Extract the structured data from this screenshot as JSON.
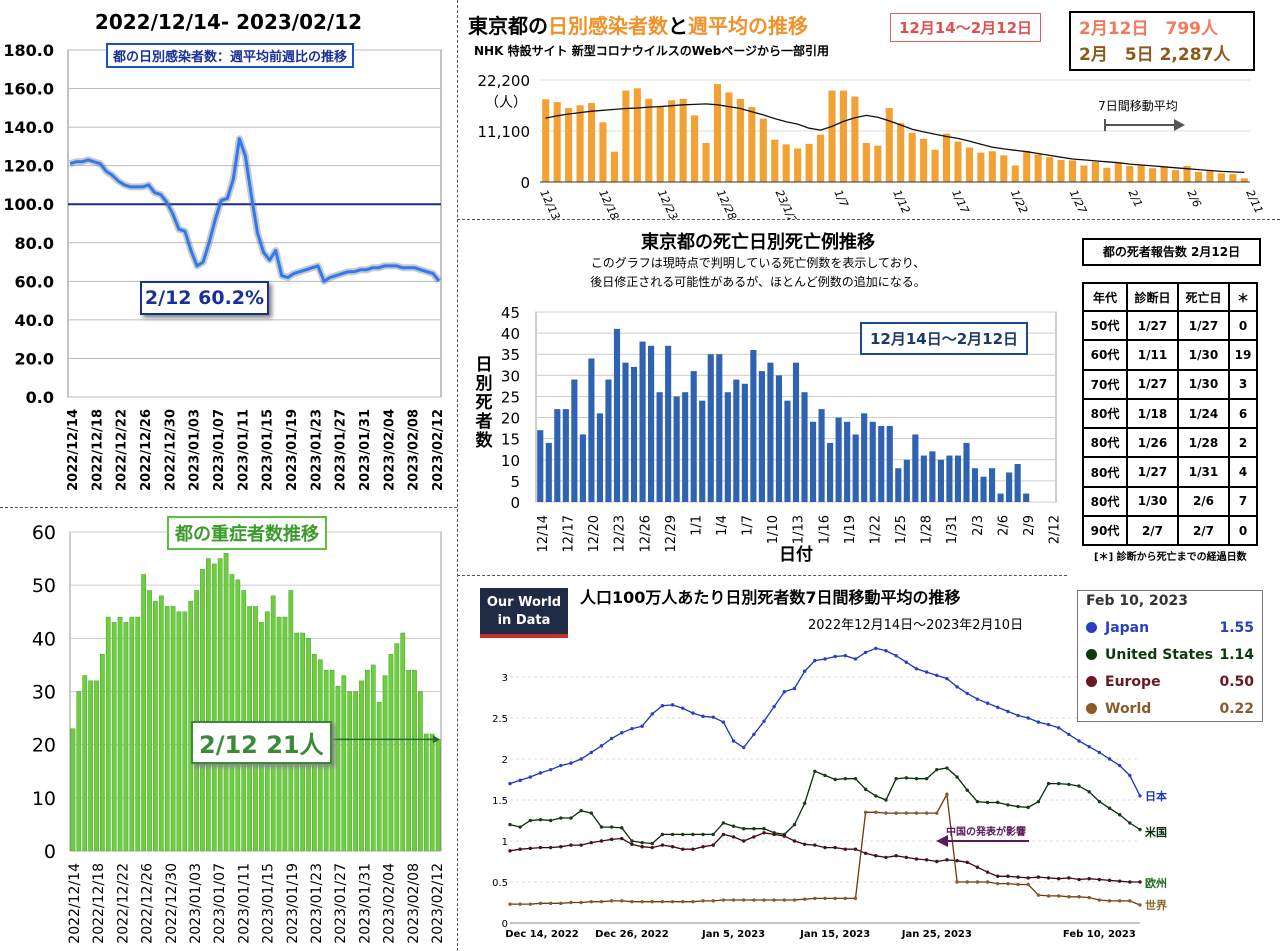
{
  "panel1": {
    "title": "2022/12/14- 2023/02/12",
    "subtitle": "都の日別感染者数：週平均前週比の推移",
    "callout": "2/12 60.2%",
    "chart_data": {
      "type": "line",
      "title": "都の日別感染者数：週平均前週比の推移",
      "ylim": [
        0,
        180
      ],
      "yticks": [
        "0.0",
        "20.0",
        "40.0",
        "60.0",
        "80.0",
        "100.0",
        "120.0",
        "140.0",
        "160.0",
        "180.0"
      ],
      "reference_line": 100,
      "xticks": [
        "2022/12/14",
        "2022/12/18",
        "2022/12/22",
        "2022/12/26",
        "2022/12/30",
        "2023/01/03",
        "2023/01/07",
        "2023/01/11",
        "2023/01/15",
        "2023/01/19",
        "2023/01/23",
        "2023/01/27",
        "2023/01/31",
        "2023/02/04",
        "2023/02/08",
        "2023/02/12"
      ],
      "values": [
        121,
        122,
        122,
        123,
        122,
        121,
        117,
        115,
        112,
        110,
        109,
        109,
        109,
        110,
        106,
        105,
        101,
        95,
        87,
        86,
        76,
        68,
        70,
        80,
        92,
        102,
        103,
        113,
        134,
        125,
        104,
        85,
        75,
        71,
        76,
        63,
        62,
        64,
        65,
        66,
        67,
        68,
        60,
        62,
        63,
        64,
        65,
        65,
        66,
        66,
        67,
        67,
        68,
        68,
        68,
        67,
        67,
        67,
        66,
        65,
        64,
        60.2
      ],
      "grid": true
    }
  },
  "panel2": {
    "title_part1": "東京都の",
    "title_part2": "日別感染者数",
    "title_part3": "と",
    "title_part4": "週平均",
    "title_part5": "の推移",
    "source": "NHK 特設サイト 新型コロナウイルスのWebページから一部引用",
    "range_label": "12月14〜2月12日",
    "box_line1_date": "2月12日",
    "box_line1_value": "799人",
    "box_line2_date": "2月　5日",
    "box_line2_value": "2,287人",
    "chart_data": {
      "type": "bar",
      "ylim": [
        0,
        22200
      ],
      "yticks": [
        "0",
        "11,100",
        "22,200"
      ],
      "yunit": "（人）",
      "legend_label": "7日間移動平均",
      "xticks": [
        "12/13",
        "12/18",
        "12/23",
        "12/28",
        "23/1/2",
        "1/7",
        "1/12",
        "1/17",
        "1/22",
        "1/27",
        "2/1",
        "2/6",
        "2/11"
      ],
      "series": [
        {
          "name": "日別感染者数",
          "values": [
            18000,
            17400,
            16100,
            16700,
            17200,
            13000,
            6600,
            19900,
            20400,
            18100,
            16600,
            17800,
            18100,
            14500,
            8500,
            21300,
            19500,
            18100,
            16300,
            13800,
            9200,
            8200,
            7300,
            8300,
            10300,
            19900,
            19900,
            18600,
            8500,
            7900,
            16100,
            12800,
            10700,
            9400,
            7000,
            10500,
            8800,
            7500,
            6400,
            6700,
            5800,
            3600,
            6800,
            6000,
            5400,
            4800,
            4700,
            3600,
            4400,
            3100,
            4100,
            3500,
            3800,
            3000,
            3300,
            2600,
            3500,
            2200,
            2400,
            1900,
            1700,
            799
          ]
        },
        {
          "name": "7日間移動平均",
          "values": [
            13900,
            14400,
            14800,
            15100,
            15400,
            15600,
            15800,
            16000,
            16100,
            16300,
            16400,
            16600,
            16800,
            16900,
            17000,
            16800,
            16400,
            16000,
            15300,
            14600,
            13800,
            13100,
            12600,
            11700,
            11300,
            12100,
            13200,
            14000,
            14500,
            14100,
            13300,
            12400,
            11500,
            10900,
            10400,
            9900,
            9500,
            8900,
            8200,
            7600,
            7200,
            6900,
            6600,
            6200,
            5800,
            5400,
            5000,
            4800,
            4600,
            4400,
            4200,
            3900,
            3700,
            3500,
            3300,
            3100,
            2900,
            2700,
            2500,
            2300,
            2200,
            2100
          ]
        }
      ]
    }
  },
  "panel3": {
    "title": "東京都の死亡日別死亡例推移",
    "note1": "このグラフは現時点で判明している死亡例数を表示しており、",
    "note2": "後日修正される可能性があるが、ほとんど例数の追加になる。",
    "range_label": "12月14日〜2月12日",
    "ylabel": "日別死者数",
    "xlabel": "日付",
    "chart_data": {
      "type": "bar",
      "ylim": [
        0,
        45
      ],
      "yticks": [
        "0",
        "5",
        "10",
        "15",
        "20",
        "25",
        "30",
        "35",
        "40",
        "45"
      ],
      "xticks": [
        "12/14",
        "12/17",
        "12/20",
        "12/23",
        "12/26",
        "12/29",
        "1/1",
        "1/4",
        "1/7",
        "1/10",
        "1/13",
        "1/16",
        "1/19",
        "1/22",
        "1/25",
        "1/28",
        "1/31",
        "2/3",
        "2/6",
        "2/9",
        "2/12"
      ],
      "values": [
        17,
        14,
        22,
        22,
        29,
        16,
        34,
        21,
        29,
        41,
        33,
        32,
        38,
        37,
        26,
        37,
        25,
        26,
        31,
        24,
        35,
        35,
        26,
        29,
        28,
        36,
        31,
        33,
        30,
        24,
        33,
        26,
        19,
        22,
        14,
        20,
        19,
        16,
        21,
        19,
        18,
        18,
        8,
        10,
        16,
        11,
        12,
        10,
        11,
        11,
        14,
        8,
        6,
        8,
        2,
        7,
        9,
        2,
        0,
        0,
        0
      ]
    }
  },
  "death_table": {
    "title": "都の死者報告数 2月12日",
    "headers": [
      "年代",
      "診断日",
      "死亡日",
      "＊"
    ],
    "rows": [
      [
        "50代",
        "1/27",
        "1/27",
        "0"
      ],
      [
        "60代",
        "1/11",
        "1/30",
        "19"
      ],
      [
        "70代",
        "1/27",
        "1/30",
        "3"
      ],
      [
        "80代",
        "1/18",
        "1/24",
        "6"
      ],
      [
        "80代",
        "1/26",
        "1/28",
        "2"
      ],
      [
        "80代",
        "1/27",
        "1/31",
        "4"
      ],
      [
        "80代",
        "1/30",
        "2/6",
        "7"
      ],
      [
        "90代",
        "2/7",
        "2/7",
        "0"
      ]
    ],
    "footnote": "[＊] 診断から死亡までの経過日数"
  },
  "panel4": {
    "title": "都の重症者数推移",
    "callout_value": "2/12 21",
    "callout_unit": "人",
    "chart_data": {
      "type": "bar",
      "ylim": [
        0,
        60
      ],
      "yticks": [
        "0",
        "10",
        "20",
        "30",
        "40",
        "50",
        "60"
      ],
      "xticks": [
        "2022/12/14",
        "2022/12/18",
        "2022/12/22",
        "2022/12/26",
        "2022/12/30",
        "2023/01/03",
        "2023/01/07",
        "2023/01/11",
        "2023/01/15",
        "2023/01/19",
        "2023/01/23",
        "2023/01/27",
        "2023/01/31",
        "2023/02/04",
        "2023/02/08",
        "2023/02/12"
      ],
      "values": [
        23,
        30,
        33,
        32,
        32,
        37,
        44,
        43,
        44,
        43,
        44,
        44,
        52,
        49,
        47,
        48,
        46,
        46,
        45,
        45,
        47,
        49,
        53,
        55,
        54,
        55,
        56,
        52,
        51,
        49,
        46,
        46,
        43,
        45,
        48,
        44,
        44,
        49,
        41,
        41,
        40,
        37,
        36,
        34,
        34,
        31,
        33,
        30,
        30,
        32,
        34,
        35,
        28,
        33,
        37,
        39,
        41,
        34,
        34,
        30,
        22,
        22,
        21
      ],
      "grid": true
    }
  },
  "panel5": {
    "logo_line1": "Our World",
    "logo_line2": "in Data",
    "title": "人口100万人あたり日別死者数7日間移動平均の推移",
    "date_range": "2022年12月14日〜2023年2月10日",
    "annotation": "中国の発表が影響",
    "legend_date": "Feb 10, 2023",
    "legend": [
      {
        "name": "Japan",
        "value": "1.55",
        "color": "#2a3fbf"
      },
      {
        "name": "United States",
        "value": "1.14",
        "color": "#0c3a0c"
      },
      {
        "name": "Europe",
        "value": "0.50",
        "color": "#6b1822"
      },
      {
        "name": "World",
        "value": "0.22",
        "color": "#8a5a2a"
      }
    ],
    "line_labels": {
      "japan": "日本",
      "us": "米国",
      "europe": "欧州",
      "world": "世界"
    },
    "chart_data": {
      "type": "line",
      "ylim": [
        0,
        3.5
      ],
      "yticks": [
        "0",
        "0.5",
        "1",
        "1.5",
        "2",
        "2.5",
        "3"
      ],
      "xticks": [
        "Dec 14, 2022",
        "Dec 26, 2022",
        "Jan 5, 2023",
        "Jan 15, 2023",
        "Jan 25, 2023",
        "Feb 10, 2023"
      ],
      "series": [
        {
          "name": "Japan",
          "values": [
            1.7,
            1.74,
            1.78,
            1.83,
            1.87,
            1.92,
            1.95,
            2.0,
            2.08,
            2.16,
            2.25,
            2.32,
            2.37,
            2.4,
            2.55,
            2.65,
            2.66,
            2.62,
            2.56,
            2.52,
            2.51,
            2.45,
            2.22,
            2.14,
            2.3,
            2.46,
            2.64,
            2.82,
            2.86,
            3.07,
            3.2,
            3.22,
            3.25,
            3.26,
            3.22,
            3.3,
            3.35,
            3.32,
            3.26,
            3.18,
            3.1,
            3.06,
            3.02,
            2.98,
            2.88,
            2.8,
            2.73,
            2.68,
            2.63,
            2.58,
            2.53,
            2.5,
            2.45,
            2.42,
            2.38,
            2.3,
            2.22,
            2.15,
            2.08,
            2.0,
            1.92,
            1.8,
            1.55
          ]
        },
        {
          "name": "United States",
          "values": [
            1.2,
            1.17,
            1.25,
            1.26,
            1.25,
            1.28,
            1.28,
            1.37,
            1.34,
            1.17,
            1.17,
            1.16,
            1.0,
            0.98,
            0.97,
            1.08,
            1.08,
            1.08,
            1.08,
            1.08,
            1.08,
            1.22,
            1.18,
            1.15,
            1.15,
            1.15,
            1.1,
            1.08,
            1.2,
            1.46,
            1.85,
            1.8,
            1.75,
            1.76,
            1.76,
            1.63,
            1.55,
            1.5,
            1.76,
            1.77,
            1.76,
            1.76,
            1.87,
            1.89,
            1.78,
            1.62,
            1.48,
            1.47,
            1.47,
            1.44,
            1.42,
            1.41,
            1.48,
            1.7,
            1.7,
            1.69,
            1.67,
            1.6,
            1.48,
            1.4,
            1.32,
            1.22,
            1.14
          ]
        },
        {
          "name": "Europe",
          "values": [
            0.88,
            0.9,
            0.91,
            0.92,
            0.92,
            0.93,
            0.95,
            0.95,
            0.98,
            1.0,
            1.02,
            1.03,
            0.96,
            0.93,
            0.92,
            0.95,
            0.93,
            0.9,
            0.9,
            0.93,
            0.95,
            1.08,
            1.05,
            1.0,
            1.05,
            1.1,
            1.08,
            1.06,
            1.0,
            0.96,
            0.95,
            0.92,
            0.92,
            0.9,
            0.9,
            0.85,
            0.82,
            0.8,
            0.82,
            0.8,
            0.78,
            0.77,
            0.75,
            0.77,
            0.76,
            0.74,
            0.68,
            0.62,
            0.57,
            0.57,
            0.56,
            0.55,
            0.56,
            0.55,
            0.54,
            0.55,
            0.53,
            0.54,
            0.53,
            0.52,
            0.51,
            0.5,
            0.5
          ]
        },
        {
          "name": "World",
          "values": [
            0.23,
            0.23,
            0.23,
            0.24,
            0.24,
            0.24,
            0.25,
            0.25,
            0.26,
            0.26,
            0.27,
            0.27,
            0.26,
            0.26,
            0.26,
            0.26,
            0.26,
            0.26,
            0.26,
            0.27,
            0.27,
            0.28,
            0.28,
            0.28,
            0.28,
            0.28,
            0.28,
            0.28,
            0.28,
            0.29,
            0.3,
            0.3,
            0.3,
            0.3,
            0.3,
            1.35,
            1.35,
            1.34,
            1.34,
            1.34,
            1.34,
            1.34,
            1.34,
            1.57,
            0.5,
            0.5,
            0.5,
            0.5,
            0.48,
            0.48,
            0.47,
            0.47,
            0.34,
            0.33,
            0.33,
            0.32,
            0.32,
            0.31,
            0.28,
            0.27,
            0.27,
            0.27,
            0.22
          ]
        }
      ]
    }
  }
}
